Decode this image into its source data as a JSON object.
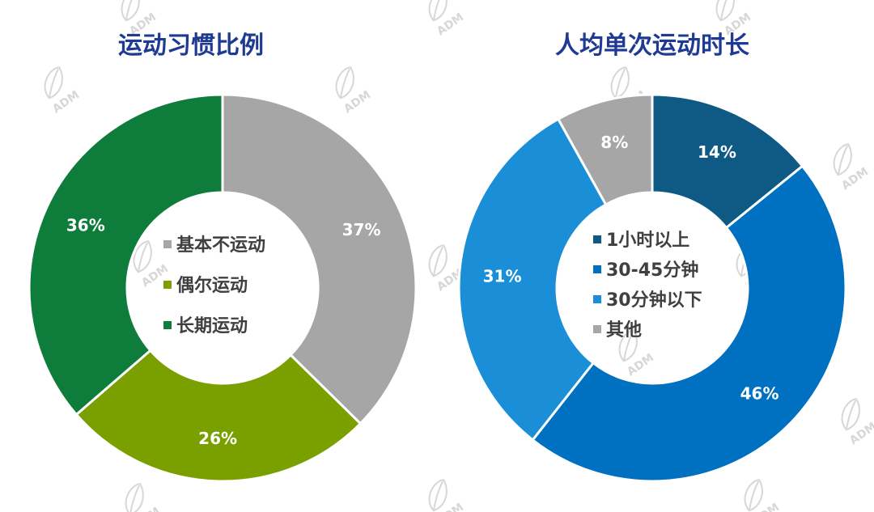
{
  "watermark": "ADM",
  "chart_data": [
    {
      "type": "pie",
      "title": "运动习惯比例",
      "title_color": "#1f3a93",
      "donut": true,
      "legend_placement": "center",
      "categories": [
        "基本不运动",
        "偶尔运动",
        "长期运动"
      ],
      "values": [
        37,
        26,
        36
      ],
      "labels": [
        "37%",
        "26%",
        "36%"
      ],
      "colors": [
        "#a6a6a6",
        "#7aa000",
        "#0e7c3a"
      ],
      "legend": [
        "基本不运动",
        "偶尔运动",
        "长期运动"
      ]
    },
    {
      "type": "pie",
      "title": "人均单次运动时长",
      "title_color": "#1f3a93",
      "donut": true,
      "legend_placement": "center",
      "categories": [
        "1小时以上",
        "30-45分钟",
        "30分钟以下",
        "其他"
      ],
      "values": [
        14,
        46,
        31,
        8
      ],
      "labels": [
        "14%",
        "46%",
        "31%",
        "8%"
      ],
      "colors": [
        "#0e5a85",
        "#0070c0",
        "#1a8fd8",
        "#a6a6a6"
      ],
      "legend": [
        "1小时以上",
        "30-45分钟",
        "30分钟以下",
        "其他"
      ]
    }
  ]
}
